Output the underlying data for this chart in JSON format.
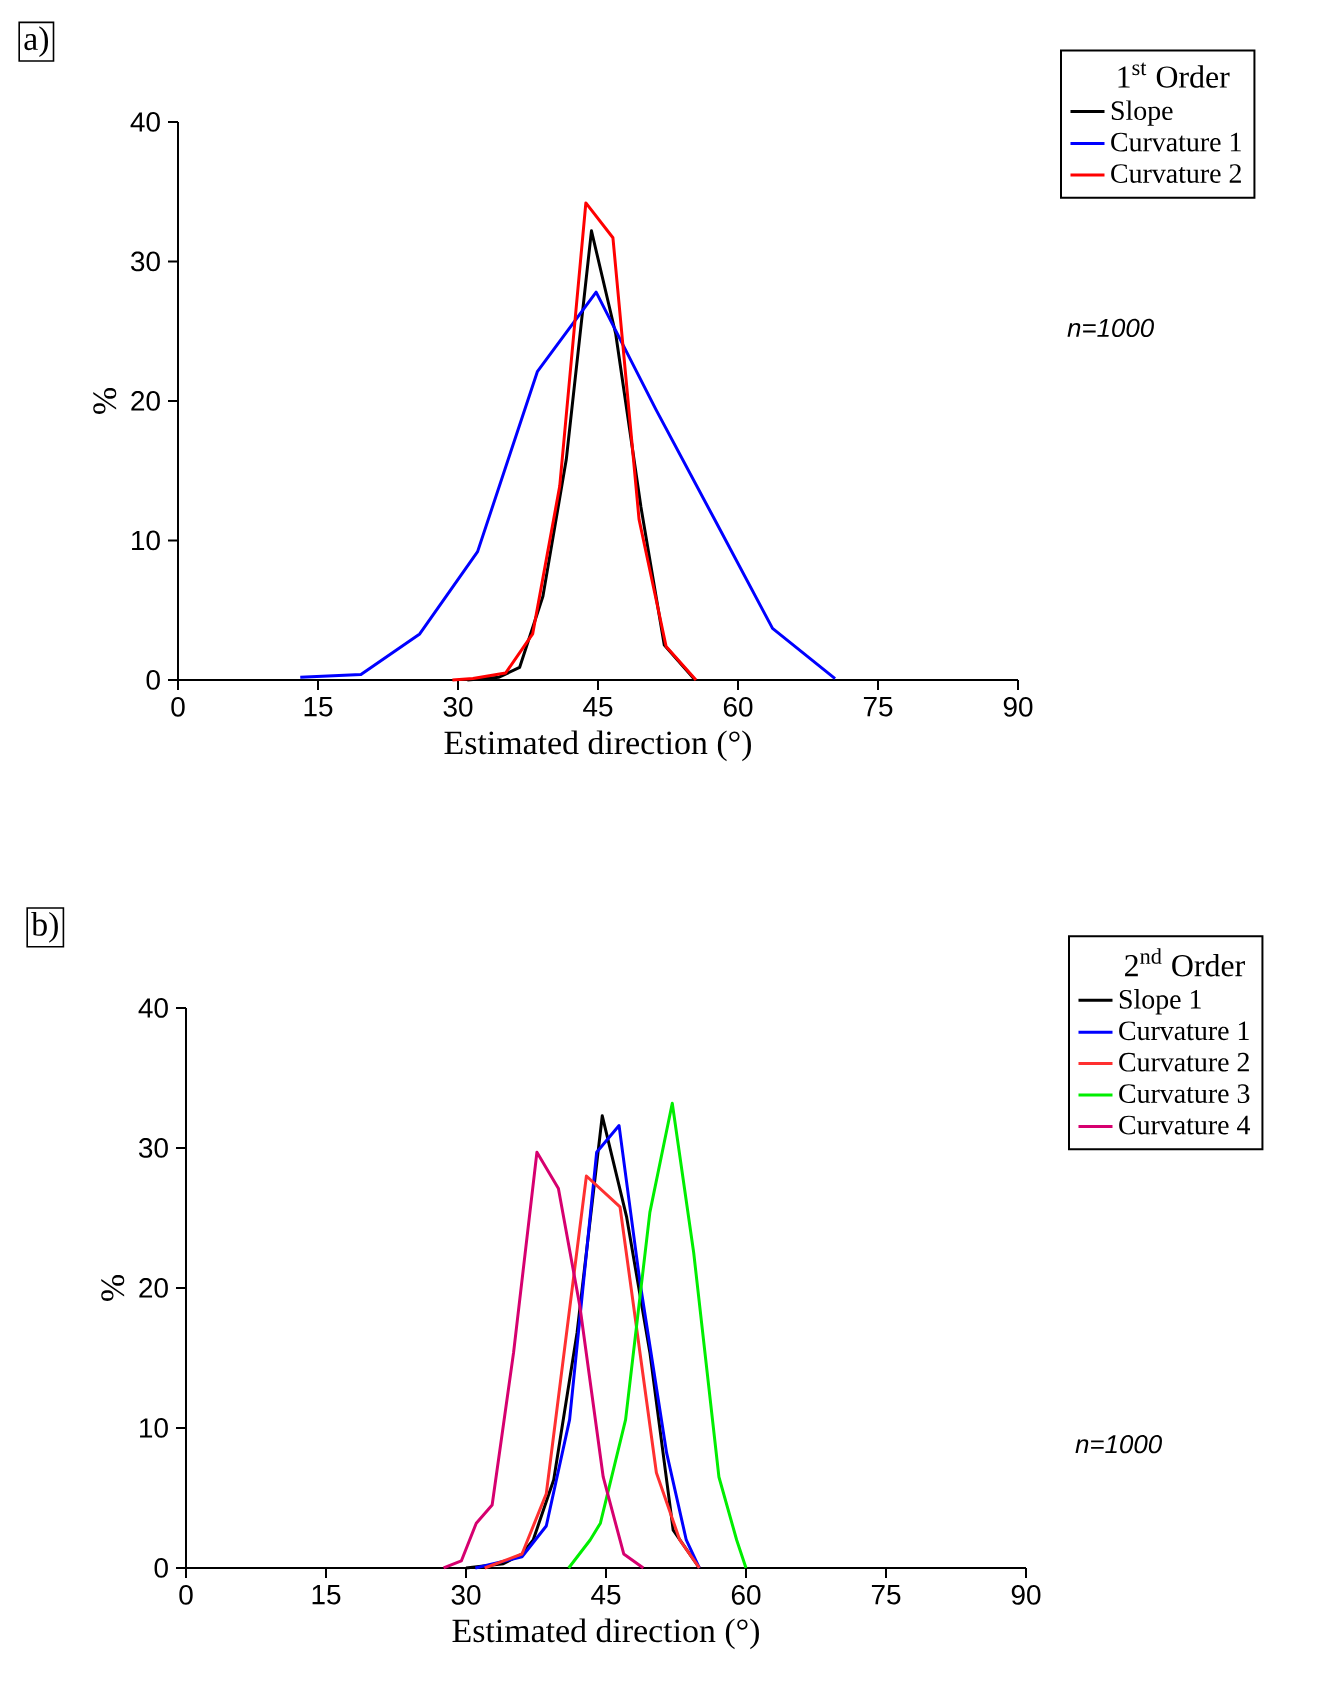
{
  "chart_data": [
    {
      "type": "line",
      "xlabel": "Estimated direction (°)",
      "ylabel": "%",
      "legend_title": "1$^{st}$ Order",
      "legend": "top right",
      "annotations": [
        "a)",
        "n=1000"
      ],
      "xlim": [
        0,
        90
      ],
      "xticks": [
        0,
        15,
        30,
        45,
        60,
        75,
        90
      ],
      "ylim": [
        0,
        40
      ],
      "yticks": [
        0,
        10,
        20,
        30,
        40
      ],
      "series": [
        {
          "name": "Slope",
          "color": "#000000",
          "x": [
            31,
            34.4,
            36.6,
            39.1,
            41.6,
            44.3,
            46.9,
            49.6,
            52.1,
            55.4
          ],
          "values": [
            0,
            0.2,
            0.9,
            6,
            15.8,
            32.2,
            24.8,
            12.4,
            2.5,
            0
          ]
        },
        {
          "name": "Curvature 1",
          "color": "#0000ff",
          "x": [
            13.1,
            19.6,
            25.9,
            32.1,
            38.5,
            44.8,
            51.2,
            57.5,
            63.7,
            70.4
          ],
          "values": [
            0.2,
            0.4,
            3.3,
            9.2,
            22.1,
            27.8,
            19.4,
            11.5,
            3.7,
            0.1
          ]
        },
        {
          "name": "Curvature 2",
          "color": "#ff0000",
          "x": [
            29.4,
            31.6,
            35.1,
            38,
            40.9,
            43.7,
            46.6,
            49.4,
            52.3,
            55.5
          ],
          "values": [
            0,
            0.1,
            0.5,
            3.3,
            13.9,
            34.2,
            31.7,
            11.5,
            2.4,
            0
          ]
        }
      ]
    },
    {
      "type": "line",
      "xlabel": "Estimated direction (°)",
      "ylabel": "%",
      "legend_title": "2$^{nd}$ Order",
      "legend": "top right",
      "annotations": [
        "b)",
        "n=1000"
      ],
      "xlim": [
        0,
        90
      ],
      "xticks": [
        0,
        15,
        30,
        45,
        60,
        75,
        90
      ],
      "ylim": [
        0,
        40
      ],
      "yticks": [
        0,
        10,
        20,
        30,
        40
      ],
      "series": [
        {
          "name": "Slope 1",
          "color": "#000000",
          "x": [
            30,
            34,
            36,
            37.2,
            39.4,
            41.9,
            44.6,
            47.2,
            49.7,
            52.2,
            55
          ],
          "values": [
            0,
            0.3,
            1,
            2,
            6.3,
            16.8,
            32.3,
            25.1,
            15.4,
            2.7,
            0
          ]
        },
        {
          "name": "Curvature 1",
          "color": "#0000ff",
          "x": [
            31,
            36,
            38.6,
            41.1,
            44,
            46.4,
            48.6,
            51.5,
            53.6,
            55
          ],
          "values": [
            0,
            0.8,
            3,
            10.6,
            29.7,
            31.6,
            20.6,
            8.2,
            2,
            0
          ]
        },
        {
          "name": "Curvature 2",
          "color": "#ff3030",
          "x": [
            32,
            36,
            38.6,
            42.9,
            46.5,
            50.4,
            52.9,
            55
          ],
          "values": [
            0,
            1,
            5.3,
            28,
            25.8,
            6.8,
            2,
            0
          ]
        },
        {
          "name": "Curvature 3",
          "color": "#00ee00",
          "x": [
            41,
            43.3,
            44.4,
            47.1,
            49.7,
            52.1,
            54.4,
            57.1,
            59,
            60
          ],
          "values": [
            0,
            2,
            3.2,
            10.6,
            25.4,
            33.2,
            22.5,
            6.5,
            2,
            0
          ]
        },
        {
          "name": "Curvature 4",
          "color": "#d6006f",
          "x": [
            27.6,
            29.5,
            31.1,
            32.8,
            35.1,
            37.6,
            39.9,
            42.2,
            44.7,
            46.9,
            49
          ],
          "values": [
            0,
            0.5,
            3.2,
            4.5,
            15.4,
            29.7,
            27.1,
            18.7,
            6.5,
            1,
            0
          ]
        }
      ]
    }
  ]
}
